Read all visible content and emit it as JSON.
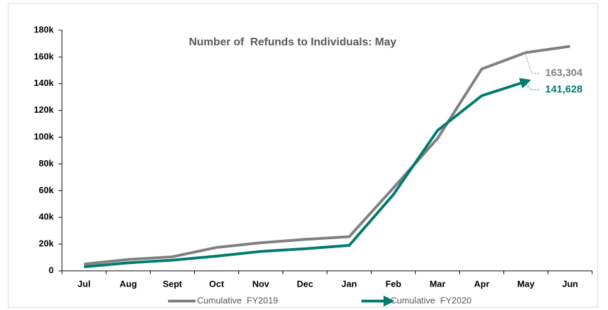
{
  "chart_data": {
    "type": "line",
    "title": "Number of  Refunds to Individuals: May",
    "categories": [
      "Jul",
      "Aug",
      "Sept",
      "Oct",
      "Nov",
      "Dec",
      "Jan",
      "Feb",
      "Mar",
      "Apr",
      "May",
      "Jun"
    ],
    "series": [
      {
        "name": "Cumulative  FY2019",
        "color": "#808080",
        "values": [
          5000,
          8500,
          10500,
          17500,
          21000,
          23500,
          25500,
          62000,
          99000,
          151000,
          163304,
          168000
        ],
        "value_labels": [
          null,
          null,
          null,
          null,
          null,
          null,
          null,
          null,
          null,
          null,
          "163,304",
          null
        ]
      },
      {
        "name": "Cumulative  FY2020",
        "color": "#007b6e",
        "values": [
          3000,
          6000,
          8000,
          11000,
          14500,
          16500,
          19000,
          57000,
          105000,
          131000,
          141628,
          null
        ],
        "value_labels": [
          null,
          null,
          null,
          null,
          null,
          null,
          null,
          null,
          null,
          null,
          "141,628",
          null
        ]
      }
    ],
    "ylim": [
      0,
      180000
    ],
    "yticks": [
      0,
      {
        "value": 20000,
        "label": "20k"
      },
      {
        "value": 40000,
        "label": "40k"
      },
      {
        "value": 60000,
        "label": "60k"
      },
      {
        "value": 80000,
        "label": "80k"
      },
      {
        "value": 100000,
        "label": "100k"
      },
      {
        "value": 120000,
        "label": "120k"
      },
      {
        "value": 140000,
        "label": "140k"
      },
      {
        "value": 160000,
        "label": "160k"
      },
      {
        "value": 180000,
        "label": "180k"
      }
    ]
  }
}
